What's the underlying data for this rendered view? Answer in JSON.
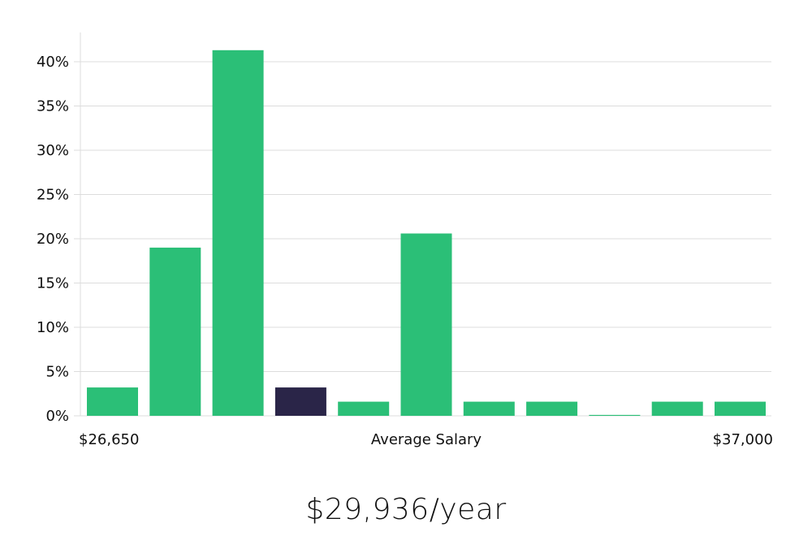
{
  "chart_data": {
    "type": "bar",
    "title": "",
    "xlabel": "Average Salary",
    "ylabel": "",
    "x_range_labels": {
      "min": "$26,650",
      "max": "$37,000"
    },
    "y_ticks": [
      "0%",
      "5%",
      "10%",
      "15%",
      "20%",
      "25%",
      "30%",
      "35%",
      "40%"
    ],
    "y_tick_values": [
      0,
      5,
      10,
      15,
      20,
      25,
      30,
      35,
      40
    ],
    "ylim": [
      0,
      43
    ],
    "grid": true,
    "values": [
      3.2,
      19.0,
      41.3,
      3.2,
      1.6,
      20.6,
      1.6,
      1.6,
      0.1,
      1.6,
      1.6
    ],
    "highlight_index": 3,
    "colors": {
      "bar": "#2bbf77",
      "highlight": "#2a2548",
      "grid": "#dcdcdc"
    }
  },
  "summary": {
    "salary_text": "$29,936/year"
  }
}
